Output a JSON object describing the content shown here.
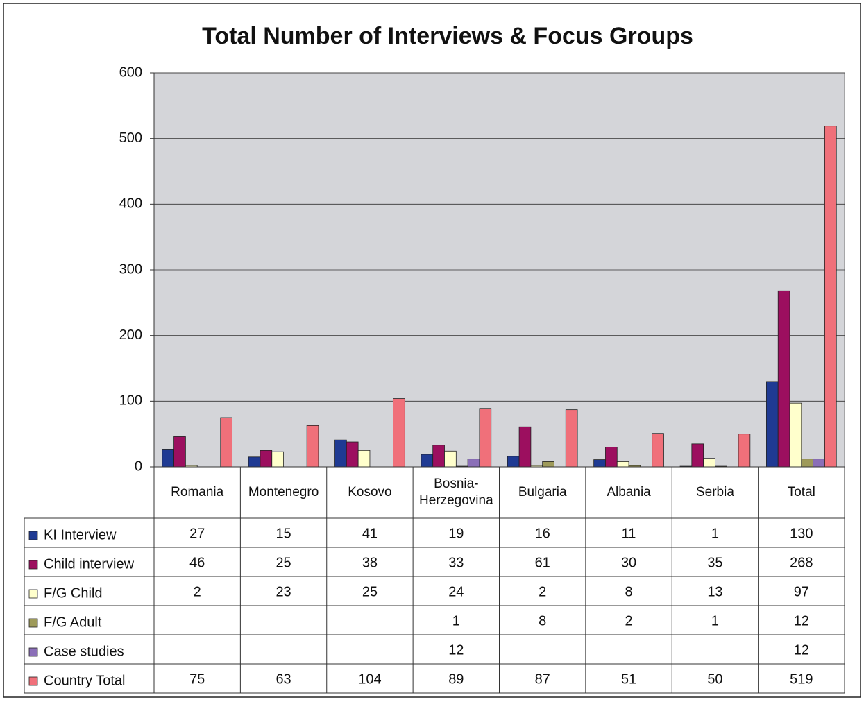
{
  "chart_data": {
    "type": "bar",
    "title": "Total Number of Interviews & Focus Groups",
    "categories": [
      "Romania",
      "Montenegro",
      "Kosovo",
      "Bosnia-Herzegovina",
      "Bulgaria",
      "Albania",
      "Serbia",
      "Total"
    ],
    "series": [
      {
        "name": "KI Interview",
        "color": "#1f3a93",
        "values": [
          27,
          15,
          41,
          19,
          16,
          11,
          1,
          130
        ]
      },
      {
        "name": "Child interview",
        "color": "#9c0f5f",
        "values": [
          46,
          25,
          38,
          33,
          61,
          30,
          35,
          268
        ]
      },
      {
        "name": "F/G Child",
        "color": "#ffffcc",
        "values": [
          2,
          23,
          25,
          24,
          2,
          8,
          13,
          97
        ]
      },
      {
        "name": "F/G Adult",
        "color": "#9e9a5a",
        "values": [
          null,
          null,
          null,
          1,
          8,
          2,
          1,
          12
        ]
      },
      {
        "name": "Case studies",
        "color": "#8b6fb8",
        "values": [
          null,
          null,
          null,
          12,
          null,
          null,
          null,
          12
        ]
      },
      {
        "name": "Country Total",
        "color": "#f0707a",
        "values": [
          75,
          63,
          104,
          89,
          87,
          51,
          50,
          519
        ]
      }
    ],
    "ylim": [
      0,
      600
    ],
    "yticks": [
      0,
      100,
      200,
      300,
      400,
      500,
      600
    ],
    "grid": true
  }
}
